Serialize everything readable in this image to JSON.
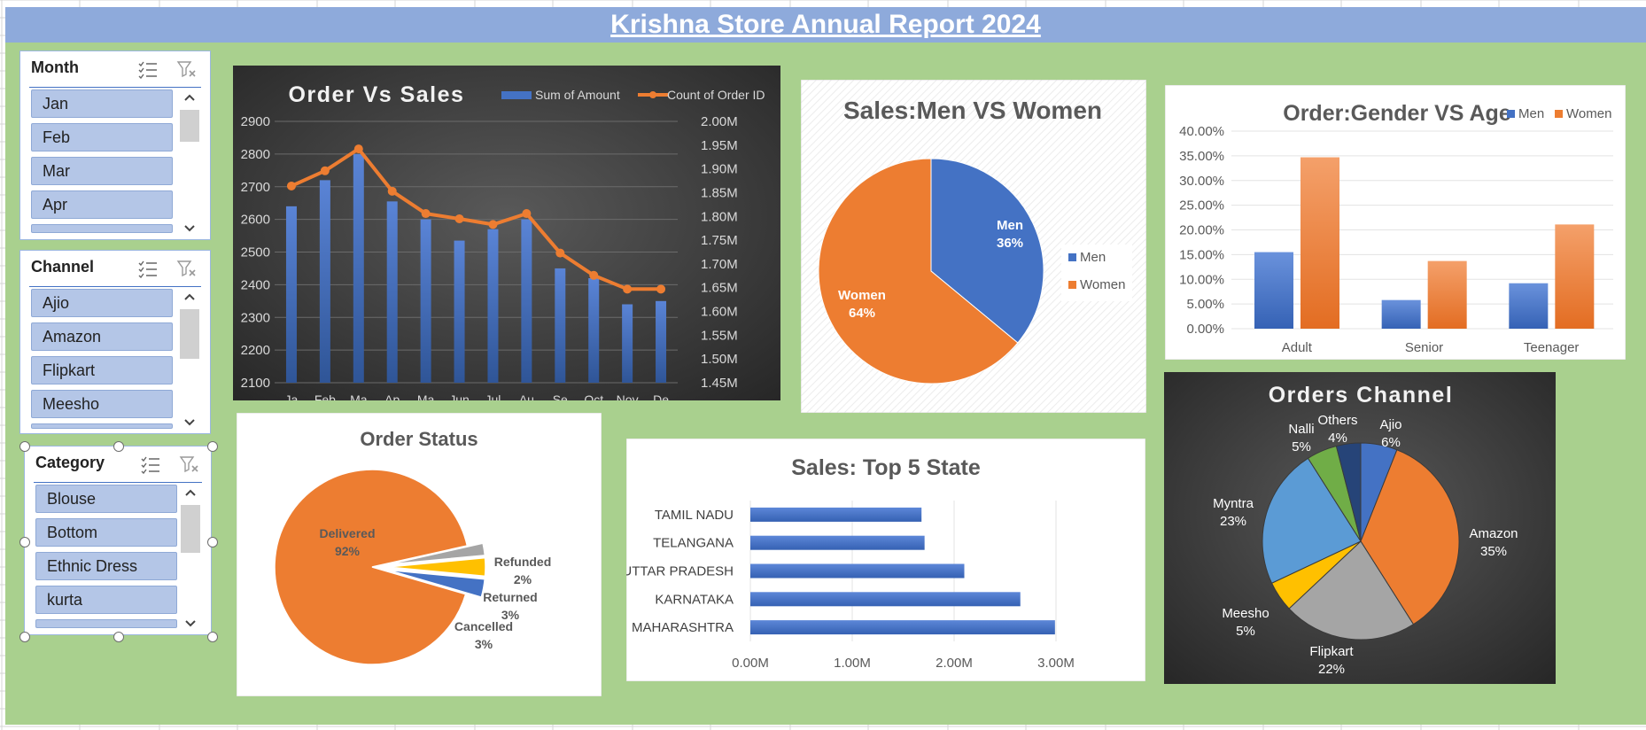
{
  "report_title": "Krishna Store Annual Report 2024",
  "slicers": {
    "month": {
      "title": "Month",
      "items": [
        "Jan",
        "Feb",
        "Mar",
        "Apr"
      ]
    },
    "channel": {
      "title": "Channel",
      "items": [
        "Ajio",
        "Amazon",
        "Flipkart",
        "Meesho"
      ]
    },
    "category": {
      "title": "Category",
      "items": [
        "Blouse",
        "Bottom",
        "Ethnic Dress",
        "kurta"
      ]
    }
  },
  "colors": {
    "blue": "#4472c4",
    "orange": "#ed7d31",
    "gray": "#a5a5a5",
    "gold": "#ffc000",
    "lightblue": "#5b9bd5",
    "green": "#70ad47",
    "navy": "#264478",
    "dashboard_bg": "#a9d08e",
    "banner": "#8eaadb"
  },
  "icons": {
    "multiselect": "multi-select-icon",
    "clear_filter": "clear-filter-icon",
    "scroll_up": "chevron-up-icon",
    "scroll_down": "chevron-down-icon"
  },
  "chart_data": [
    {
      "id": "order_vs_sales",
      "type": "bar",
      "title": "Order Vs Sales",
      "categories": [
        "Jan",
        "Feb",
        "Mar",
        "Apr",
        "May",
        "Jun",
        "Jul",
        "Aug",
        "Sep",
        "Oct",
        "Nov",
        "Dec"
      ],
      "category_labels_visible": [
        "Ja",
        "Feb",
        "Ma",
        "Ap",
        "Ma",
        "Jun",
        "Jul",
        "Au",
        "Se",
        "Oct",
        "Nov",
        "De"
      ],
      "series": [
        {
          "name": "Sum of Amount",
          "type": "bar",
          "axis": "left",
          "values": [
            2640,
            2720,
            2800,
            2655,
            2600,
            2535,
            2570,
            2600,
            2450,
            2420,
            2340,
            2350
          ]
        },
        {
          "name": "Count of Order ID",
          "type": "line",
          "axis": "right",
          "values": [
            1.864,
            1.896,
            1.942,
            1.853,
            1.806,
            1.795,
            1.783,
            1.806,
            1.723,
            1.676,
            1.647,
            1.647
          ]
        }
      ],
      "y_left": {
        "min": 2100,
        "max": 2900,
        "ticks": [
          "2900",
          "2800",
          "2700",
          "2600",
          "2500",
          "2400",
          "2300",
          "2200",
          "2100"
        ]
      },
      "y_right": {
        "min": 1.45,
        "max": 2.0,
        "ticks": [
          "2.00M",
          "1.95M",
          "1.90M",
          "1.85M",
          "1.80M",
          "1.75M",
          "1.70M",
          "1.65M",
          "1.60M",
          "1.55M",
          "1.50M",
          "1.45M"
        ]
      },
      "legend": "top-right",
      "grid": true
    },
    {
      "id": "sales_men_women",
      "type": "pie",
      "title": "Sales:Men VS Women",
      "labels": [
        "Men",
        "Women"
      ],
      "values": [
        36,
        64
      ],
      "data_labels": [
        "Men",
        "36%",
        "Women",
        "64%"
      ],
      "legend_labels": [
        "Men",
        "Women"
      ],
      "legend": "right"
    },
    {
      "id": "order_gender_age",
      "type": "bar",
      "title": "Order:Gender VS Age",
      "categories": [
        "Adult",
        "Senior",
        "Teenager"
      ],
      "series": [
        {
          "name": "Men",
          "values": [
            15.5,
            5.8,
            9.2
          ]
        },
        {
          "name": "Women",
          "values": [
            34.7,
            13.7,
            21.1
          ]
        }
      ],
      "ylim": [
        0,
        40
      ],
      "y_ticks": [
        "40.00%",
        "35.00%",
        "30.00%",
        "25.00%",
        "20.00%",
        "15.00%",
        "10.00%",
        "5.00%",
        "0.00%"
      ],
      "legend": "top-right",
      "grid": true
    },
    {
      "id": "order_status",
      "type": "pie",
      "title": "Order Status",
      "labels": [
        "Delivered",
        "Refunded",
        "Returned",
        "Cancelled"
      ],
      "values": [
        92,
        2,
        3,
        3
      ],
      "percent_labels": [
        "92%",
        "2%",
        "3%",
        "3%"
      ]
    },
    {
      "id": "top5_state",
      "type": "bar",
      "orientation": "horizontal",
      "title": "Sales: Top 5 State",
      "categories": [
        "TAMIL NADU",
        "TELANGANA",
        "UTTAR PRADESH",
        "KARNATAKA",
        "MAHARASHTRA"
      ],
      "values": [
        1.68,
        1.71,
        2.1,
        2.65,
        2.99
      ],
      "xlim": [
        0,
        3
      ],
      "x_ticks": [
        "0.00M",
        "1.00M",
        "2.00M",
        "3.00M"
      ],
      "grid": true
    },
    {
      "id": "orders_channel",
      "type": "pie",
      "title": "Orders Channel",
      "labels": [
        "Ajio",
        "Amazon",
        "Flipkart",
        "Meesho",
        "Myntra",
        "Nalli",
        "Others"
      ],
      "values": [
        6,
        35,
        22,
        5,
        23,
        5,
        4
      ],
      "percent_labels": [
        "6%",
        "35%",
        "22%",
        "5%",
        "23%",
        "5%",
        "4%"
      ]
    }
  ]
}
